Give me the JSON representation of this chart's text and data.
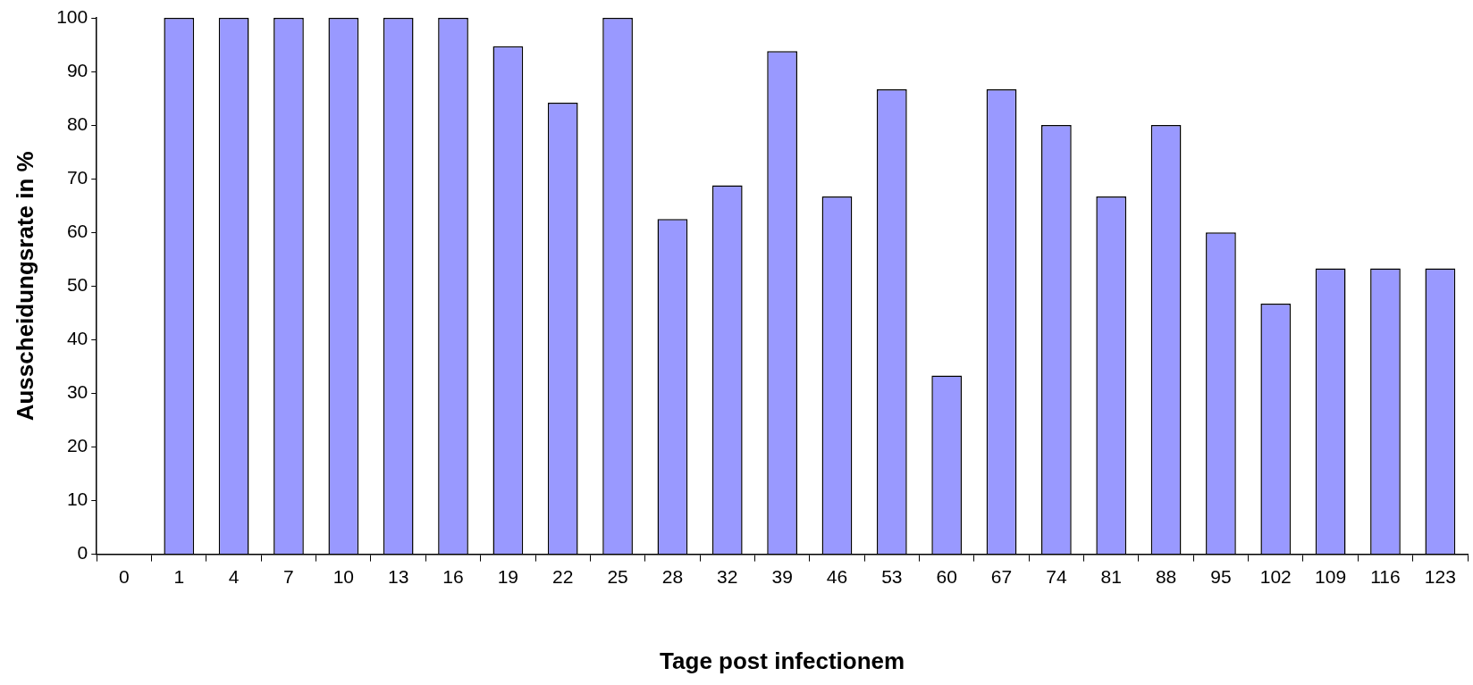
{
  "chart_data": {
    "type": "bar",
    "xlabel": "Tage post infectionem",
    "ylabel": "Ausscheidungsrate in %",
    "categories": [
      "0",
      "1",
      "4",
      "7",
      "10",
      "13",
      "16",
      "19",
      "22",
      "25",
      "28",
      "32",
      "39",
      "46",
      "53",
      "60",
      "67",
      "74",
      "81",
      "88",
      "95",
      "102",
      "109",
      "116",
      "123"
    ],
    "values": [
      0,
      100,
      100,
      100,
      100,
      100,
      100,
      94.7,
      84.2,
      100,
      62.5,
      68.8,
      93.8,
      66.7,
      86.7,
      33.3,
      86.7,
      80,
      66.7,
      80,
      60,
      46.7,
      53.3,
      53.3,
      53.3
    ],
    "color": "#9999ff",
    "ylim": [
      0,
      100
    ],
    "yticks": [
      0,
      10,
      20,
      30,
      40,
      50,
      60,
      70,
      80,
      90,
      100
    ],
    "grid": false,
    "legend": false
  }
}
